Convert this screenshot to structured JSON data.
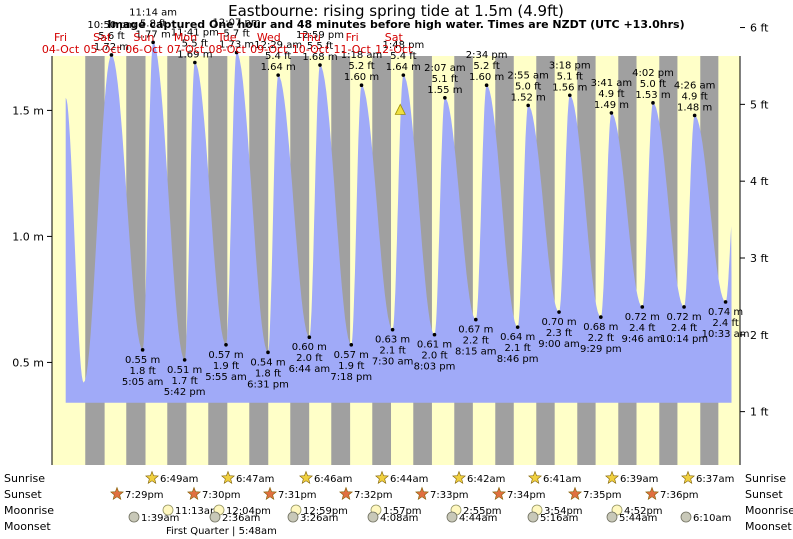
{
  "chart_data": {
    "type": "area",
    "title": "Eastbourne: rising  spring tide at 1.5m (4.9ft)",
    "subtitle": "Image captured One hour and 48 minutes before high water. Times are NZDT (UTC +13.0hrs)",
    "ylabel_left_unit": "m",
    "ylabel_right_unit": "ft",
    "ylim_m": [
      0.22,
      1.7
    ],
    "left_ticks": [
      "0.5 m",
      "1.0 m",
      "1.5 m"
    ],
    "left_tick_values": [
      0.5,
      1.0,
      1.5
    ],
    "right_ticks": [
      "1 ft",
      "2 ft",
      "3 ft",
      "4 ft",
      "5 ft",
      "6 ft"
    ],
    "right_tick_values": [
      1,
      2,
      3,
      4,
      5,
      6
    ],
    "days": [
      {
        "name": "Fri",
        "date": "04-Oct"
      },
      {
        "name": "Sat",
        "date": "05-Oct"
      },
      {
        "name": "Sun",
        "date": "06-Oct"
      },
      {
        "name": "Mon",
        "date": "07-Oct"
      },
      {
        "name": "Tue",
        "date": "08-Oct"
      },
      {
        "name": "Wed",
        "date": "09-Oct"
      },
      {
        "name": "Thu",
        "date": "10-Oct"
      },
      {
        "name": "Fri",
        "date": "11-Oct"
      },
      {
        "name": "Sat",
        "date": "12-Oct"
      }
    ],
    "start_day_hour": 0,
    "first_day_offset_hours": -7,
    "series_tides": [
      {
        "kind": "low",
        "hours": 18.5,
        "h": 0.42,
        "time": "",
        "ft": "",
        "m": ""
      },
      {
        "kind": "high",
        "hours": 34.83,
        "h": 1.72,
        "time": "10:50 pm",
        "ft": "5.6 ft",
        "m": "1.72 m"
      },
      {
        "kind": "low",
        "hours": 53.08,
        "h": 0.55,
        "time": "5:05 am",
        "ft": "1.8 ft",
        "m": "0.55 m"
      },
      {
        "kind": "high",
        "hours": 59.23,
        "h": 1.77,
        "time": "11:14 am",
        "ft": "5.8 ft",
        "m": "1.77 m"
      },
      {
        "kind": "low",
        "hours": 77.7,
        "h": 0.51,
        "time": "5:42 pm",
        "ft": "1.7 ft",
        "m": "0.51 m"
      },
      {
        "kind": "high",
        "hours": 83.68,
        "h": 1.69,
        "time": "11:41 pm",
        "ft": "5.5 ft",
        "m": "1.69 m"
      },
      {
        "kind": "low",
        "hours": 101.92,
        "h": 0.57,
        "time": "5:55 am",
        "ft": "1.9 ft",
        "m": "0.57 m"
      },
      {
        "kind": "high",
        "hours": 108.12,
        "h": 1.73,
        "time": "12:07 pm",
        "ft": "5.7 ft",
        "m": "1.73 m"
      },
      {
        "kind": "low",
        "hours": 126.52,
        "h": 0.54,
        "time": "6:31 pm",
        "ft": "1.8 ft",
        "m": "0.54 m"
      },
      {
        "kind": "high",
        "hours": 132.48,
        "h": 1.64,
        "time": "12:29 am",
        "ft": "5.4 ft",
        "m": "1.64 m"
      },
      {
        "kind": "low",
        "hours": 150.73,
        "h": 0.6,
        "time": "6:44 am",
        "ft": "2.0 ft",
        "m": "0.60 m"
      },
      {
        "kind": "high",
        "hours": 156.98,
        "h": 1.68,
        "time": "12:59 pm",
        "ft": "5.5 ft",
        "m": "1.68 m"
      },
      {
        "kind": "low",
        "hours": 175.3,
        "h": 0.57,
        "time": "7:18 pm",
        "ft": "1.9 ft",
        "m": "0.57 m"
      },
      {
        "kind": "high",
        "hours": 181.3,
        "h": 1.6,
        "time": "1:18 am",
        "ft": "5.2 ft",
        "m": "1.60 m"
      },
      {
        "kind": "low",
        "hours": 199.5,
        "h": 0.63,
        "time": "7:30 am",
        "ft": "2.1 ft",
        "m": "0.63 m"
      },
      {
        "kind": "high",
        "hours": 205.8,
        "h": 1.64,
        "time": "1:48 pm",
        "ft": "5.4 ft",
        "m": "1.64 m"
      },
      {
        "kind": "low",
        "hours": 224.05,
        "h": 0.61,
        "time": "8:03 pm",
        "ft": "2.0 ft",
        "m": "0.61 m"
      },
      {
        "kind": "high",
        "hours": 230.12,
        "h": 1.55,
        "time": "2:07 am",
        "ft": "5.1 ft",
        "m": "1.55 m"
      },
      {
        "kind": "low",
        "hours": 248.25,
        "h": 0.67,
        "time": "8:15 am",
        "ft": "2.2 ft",
        "m": "0.67 m"
      },
      {
        "kind": "high",
        "hours": 254.57,
        "h": 1.6,
        "time": "2:34 pm",
        "ft": "5.2 ft",
        "m": "1.60 m"
      },
      {
        "kind": "low",
        "hours": 272.77,
        "h": 0.64,
        "time": "8:46 pm",
        "ft": "2.1 ft",
        "m": "0.64 m"
      },
      {
        "kind": "high",
        "hours": 278.92,
        "h": 1.52,
        "time": "2:55 am",
        "ft": "5.0 ft",
        "m": "1.52 m"
      },
      {
        "kind": "low",
        "hours": 297.0,
        "h": 0.7,
        "time": "9:00 am",
        "ft": "2.3 ft",
        "m": "0.70 m"
      },
      {
        "kind": "high",
        "hours": 303.3,
        "h": 1.56,
        "time": "3:18 pm",
        "ft": "5.1 ft",
        "m": "1.56 m"
      },
      {
        "kind": "low",
        "hours": 321.48,
        "h": 0.68,
        "time": "9:29 pm",
        "ft": "2.2 ft",
        "m": "0.68 m"
      },
      {
        "kind": "high",
        "hours": 327.68,
        "h": 1.49,
        "time": "3:41 am",
        "ft": "4.9 ft",
        "m": "1.49 m"
      },
      {
        "kind": "low",
        "hours": 345.77,
        "h": 0.72,
        "time": "9:46 am",
        "ft": "2.4 ft",
        "m": "0.72 m"
      },
      {
        "kind": "high",
        "hours": 352.03,
        "h": 1.53,
        "time": "4:02 pm",
        "ft": "5.0 ft",
        "m": "1.53 m"
      },
      {
        "kind": "low",
        "hours": 370.23,
        "h": 0.72,
        "time": "10:14 pm",
        "ft": "2.4 ft",
        "m": "0.72 m"
      },
      {
        "kind": "high",
        "hours": 376.43,
        "h": 1.48,
        "time": "4:26 am",
        "ft": "4.9 ft",
        "m": "1.48 m"
      },
      {
        "kind": "low",
        "hours": 394.55,
        "h": 0.74,
        "time": "10:33 am",
        "ft": "2.4 ft",
        "m": "0.74 m"
      },
      {
        "kind": "high",
        "hours": 400.0,
        "h": 1.2,
        "time": "",
        "ft": "",
        "m": ""
      }
    ],
    "current": {
      "hours": 204.0,
      "h": 1.5,
      "label": "rising spring tide at 1.5m"
    },
    "night_bands_hours": [
      [
        19.48,
        30.82
      ],
      [
        43.5,
        54.78
      ],
      [
        67.52,
        78.73
      ],
      [
        91.53,
        102.7
      ],
      [
        115.55,
        126.68
      ],
      [
        139.57,
        150.65
      ],
      [
        163.58,
        174.62
      ],
      [
        187.6,
        198.58
      ],
      [
        211.62,
        222.55
      ],
      [
        235.63,
        246.52
      ],
      [
        259.65,
        270.48
      ],
      [
        283.67,
        294.45
      ],
      [
        307.68,
        318.42
      ],
      [
        331.7,
        342.38
      ],
      [
        355.72,
        366.35
      ],
      [
        379.73,
        390.32
      ]
    ]
  },
  "almanac": {
    "row_labels": {
      "sunrise": "Sunrise",
      "sunset": "Sunset",
      "moonrise": "Moonrise",
      "moonset": "Moonset"
    },
    "sunrise": [
      "6:49am",
      "6:47am",
      "6:46am",
      "6:44am",
      "6:42am",
      "6:41am",
      "6:39am",
      "6:37am"
    ],
    "sunset": [
      "7:29pm",
      "7:30pm",
      "7:31pm",
      "7:32pm",
      "7:33pm",
      "7:34pm",
      "7:35pm",
      "7:36pm"
    ],
    "moonrise": [
      "11:13am",
      "12:04pm",
      "12:59pm",
      "1:57pm",
      "2:55pm",
      "3:54pm",
      "4:52pm"
    ],
    "moonset": [
      "1:39am",
      "2:36am",
      "3:26am",
      "4:08am",
      "4:44am",
      "5:16am",
      "5:44am",
      "6:10am"
    ],
    "moon_phase": "First Quarter | 5:48am"
  },
  "colors": {
    "tide_fill": "#a0aaf8",
    "day_band": "#ffffc8",
    "night_band": "#a0a0a0",
    "day_label": "#d40000",
    "sunrise_star": "#f0d040",
    "sunset_star": "#e07040",
    "moonrise_circle": "#fff8c0",
    "moonset_circle": "#c8c8b8"
  }
}
